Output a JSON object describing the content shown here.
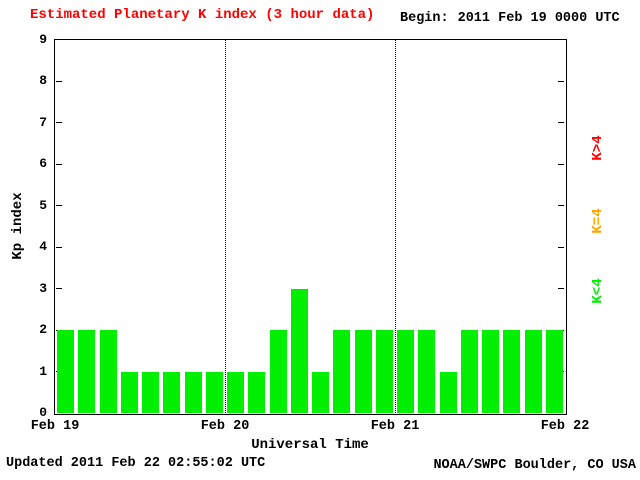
{
  "header": {
    "title": "Estimated Planetary K index (3 hour data)",
    "begin_label": "Begin:",
    "begin_value": "2011 Feb 19 0000 UTC"
  },
  "footer": {
    "updated": "Updated 2011 Feb 22 02:55:02 UTC",
    "credit": "NOAA/SWPC Boulder, CO USA"
  },
  "axes": {
    "ylabel": "Kp index",
    "xlabel": "Universal Time",
    "yticks": [
      0,
      1,
      2,
      3,
      4,
      5,
      6,
      7,
      8,
      9
    ],
    "x_day_labels": [
      "Feb 19",
      "Feb 20",
      "Feb 21",
      "Feb 22"
    ]
  },
  "legend": {
    "items": [
      {
        "label": "K<4",
        "color": "#00ee00"
      },
      {
        "label": "K=4",
        "color": "#ffa500"
      },
      {
        "label": "K>4",
        "color": "#ff0000"
      }
    ]
  },
  "colors": {
    "title": "#ff0000",
    "bar_low": "#00ee00",
    "bar_mid": "#ffa500",
    "bar_high": "#ff0000"
  },
  "chart_data": {
    "type": "bar",
    "title": "Estimated Planetary K index (3 hour data)",
    "xlabel": "Universal Time",
    "ylabel": "Kp index",
    "ylim": [
      0,
      9
    ],
    "interval_hours": 3,
    "x_day_labels": [
      "Feb 19",
      "Feb 20",
      "Feb 21",
      "Feb 22"
    ],
    "values": [
      2,
      2,
      2,
      1,
      1,
      1,
      1,
      1,
      1,
      1,
      2,
      3,
      1,
      2,
      2,
      2,
      2,
      2,
      1,
      2,
      2,
      2,
      2,
      2
    ],
    "color_rule": {
      "K<4": "#00ee00",
      "K=4": "#ffa500",
      "K>4": "#ff0000"
    },
    "gridlines": "vertical dotted lines at day boundaries",
    "legend_position": "right",
    "begin": "2011 Feb 19 0000 UTC",
    "updated": "Updated 2011 Feb 22 02:55:02 UTC",
    "source": "NOAA/SWPC Boulder, CO USA"
  }
}
